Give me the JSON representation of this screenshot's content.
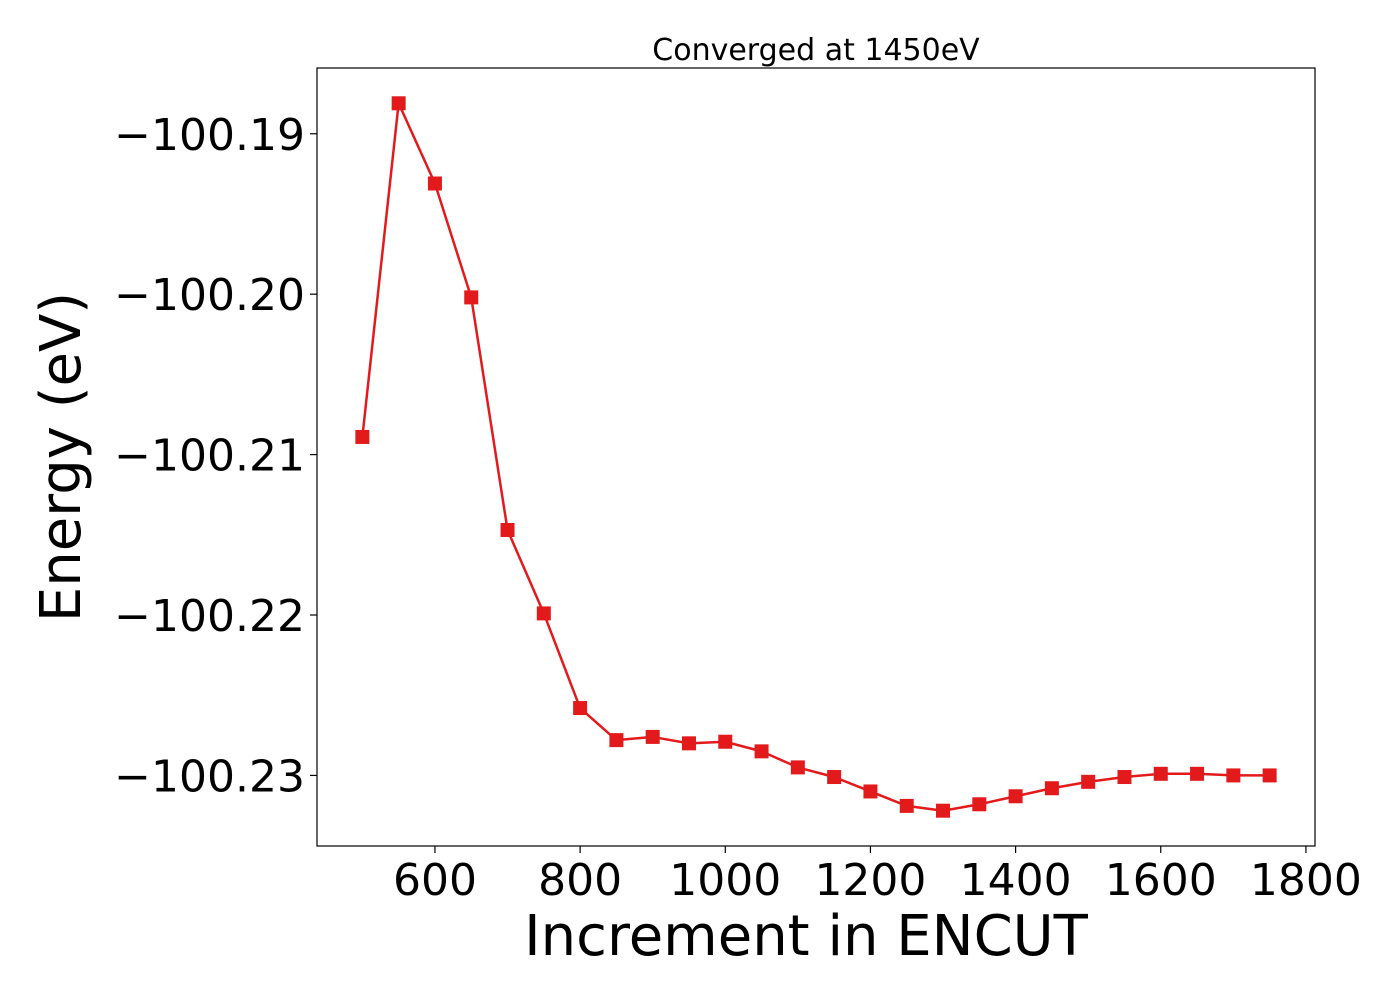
{
  "chart_data": {
    "type": "line",
    "title": "Converged at 1450eV",
    "xlabel": "Increment in ENCUT",
    "ylabel": "Energy (eV)",
    "x": [
      500,
      550,
      600,
      650,
      700,
      750,
      800,
      850,
      900,
      950,
      1000,
      1050,
      1100,
      1150,
      1200,
      1250,
      1300,
      1350,
      1400,
      1450,
      1500,
      1550,
      1600,
      1650,
      1700,
      1750
    ],
    "series": [
      {
        "values": [
          -100.2089,
          -100.1881,
          -100.1931,
          -100.2002,
          -100.2147,
          -100.2199,
          -100.2258,
          -100.2278,
          -100.2276,
          -100.228,
          -100.2279,
          -100.2285,
          -100.2295,
          -100.2301,
          -100.231,
          -100.2319,
          -100.2322,
          -100.2318,
          -100.2313,
          -100.2308,
          -100.2304,
          -100.2301,
          -100.2299,
          -100.2299,
          -100.23,
          -100.23
        ],
        "color": "#e31a1c",
        "marker": "square"
      }
    ],
    "xticks": [
      600,
      800,
      1000,
      1200,
      1400,
      1600,
      1800
    ],
    "xtick_labels": [
      "600",
      "800",
      "1000",
      "1200",
      "1400",
      "1600",
      "1800"
    ],
    "yticks": [
      -100.19,
      -100.2,
      -100.21,
      -100.22,
      -100.23
    ],
    "ytick_labels": [
      "−100.19",
      "−100.20",
      "−100.21",
      "−100.22",
      "−100.23"
    ],
    "xlim": [
      437.5,
      1812.5
    ],
    "ylim": [
      -100.2344,
      -100.1859
    ],
    "grid": false,
    "legend": "none"
  }
}
